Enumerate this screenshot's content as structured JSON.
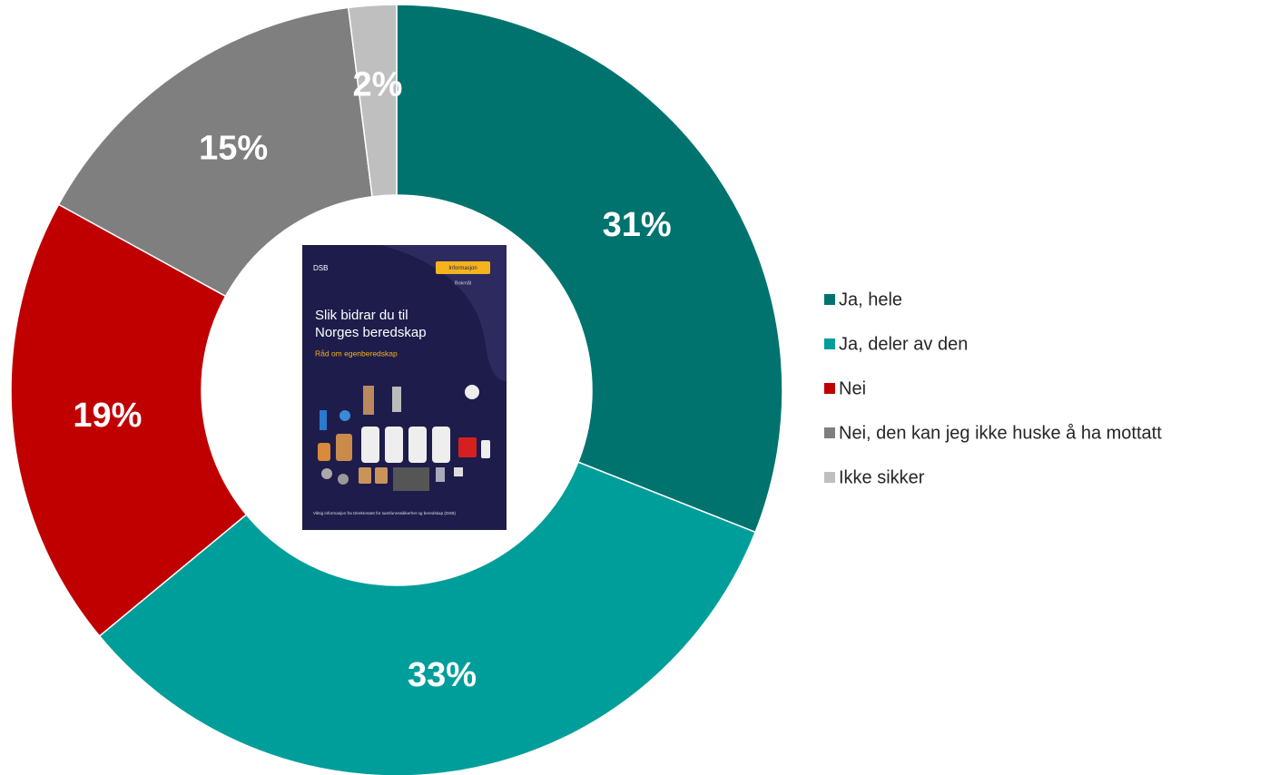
{
  "chart_data": {
    "type": "donut",
    "categories": [
      "Ja, hele",
      "Ja, deler av den",
      "Nei",
      "Nei, den kan jeg ikke huske å ha mottatt",
      "Ikke sikker"
    ],
    "values": [
      31,
      33,
      19,
      15,
      2
    ],
    "value_labels": [
      "31%",
      "33%",
      "19%",
      "15%",
      "2%"
    ],
    "colors": [
      "#00736e",
      "#009e9a",
      "#c00000",
      "#7f7f7f",
      "#bfbfbf"
    ],
    "legend": "right",
    "center_image": {
      "logo": "DSB",
      "badge": "Informasjon",
      "language": "Bokmål",
      "title": [
        "Slik bidrar du til",
        "Norges beredskap"
      ],
      "subtitle": "Råd om egenberedskap",
      "footer": "Viktig informasjon fra Direktoratet for samfunnssikkerhet og beredskap (DSB)"
    }
  }
}
